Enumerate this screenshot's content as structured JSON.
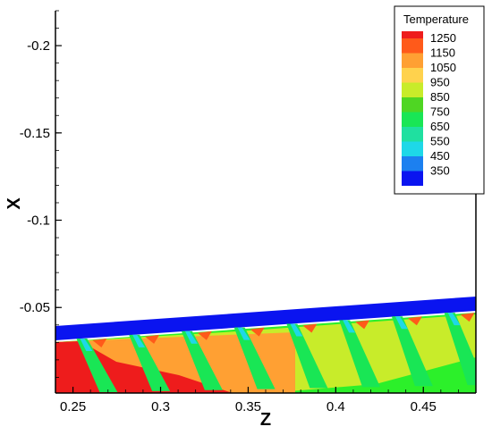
{
  "chart_data": {
    "type": "heatmap",
    "title": "",
    "xlabel": "Z",
    "ylabel": "X",
    "xlim": [
      0.24,
      0.48
    ],
    "ylim": [
      -0.001,
      -0.22
    ],
    "x_ticks": [
      {
        "value": 0.25,
        "label": "0.25"
      },
      {
        "value": 0.3,
        "label": "0.3"
      },
      {
        "value": 0.35,
        "label": "0.35"
      },
      {
        "value": 0.4,
        "label": "0.4"
      },
      {
        "value": 0.45,
        "label": "0.45"
      }
    ],
    "y_ticks": [
      {
        "value": -0.2,
        "label": "-0.2"
      },
      {
        "value": -0.15,
        "label": "-0.15"
      },
      {
        "value": -0.1,
        "label": "-0.1"
      },
      {
        "value": -0.05,
        "label": "-0.05"
      }
    ],
    "legend": {
      "title": "Temperature",
      "placement": "top-right",
      "levels": [
        {
          "label": "1250",
          "color": "#ff5a1a"
        },
        {
          "label": "1150",
          "color": "#ffa033"
        },
        {
          "label": "1050",
          "color": "#ffd24d"
        },
        {
          "label": "950",
          "color": "#c8ec2a"
        },
        {
          "label": "850",
          "color": "#4fd623"
        },
        {
          "label": "750",
          "color": "#19e655"
        },
        {
          "label": "650",
          "color": "#1fe0a0"
        },
        {
          "label": "550",
          "color": "#1ed8e8"
        },
        {
          "label": "450",
          "color": "#1c80f0"
        },
        {
          "label": "350",
          "color": "#0a14f0"
        }
      ],
      "top_color": "#ee1c1c"
    },
    "regions": {
      "cold_band": {
        "color": "#0a14f0",
        "z": [
          0.24,
          0.48
        ],
        "x_lower": [
          -0.0375,
          -0.0485
        ],
        "x_upper": [
          -0.0285,
          -0.0395
        ]
      },
      "hot_region": {
        "color": "#ee1c1c"
      },
      "jet_count": 8,
      "jet_z": [
        0.255,
        0.285,
        0.315,
        0.345,
        0.375,
        0.405,
        0.435,
        0.465
      ]
    }
  }
}
